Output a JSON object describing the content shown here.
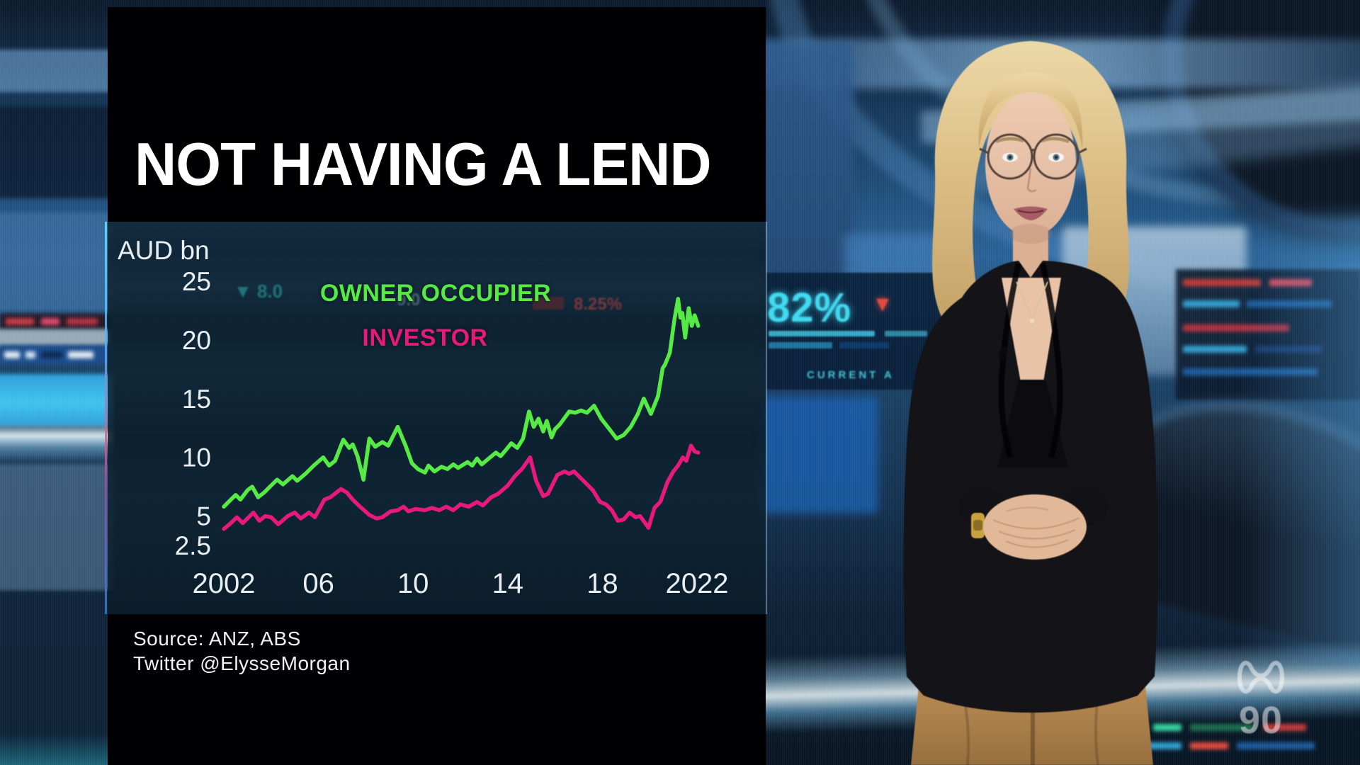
{
  "header": {
    "title": "NOT HAVING A LEND"
  },
  "footer": {
    "source": "Source: ANZ, ABS",
    "credit": "Twitter @ElysseMorgan"
  },
  "watermark": {
    "station": "ABC",
    "number": "90"
  },
  "colors": {
    "owner_occupier_green": "#55EB44",
    "investor_pink": "#E8197C",
    "axis_text": "#E9EFF2",
    "panel_black": "#010103",
    "ticker_cyan": "#3FD9F0",
    "ticker_red": "#E0483E",
    "ticker_teal": "#2FD0C8"
  },
  "studio": {
    "screen_big_percent": "82%",
    "screen_down_triangle": "▼",
    "screen_caption": "CURRENT A",
    "bleed_teal_ticker": "▼ 8.0",
    "bleed_pale_ticker": "9.0",
    "bleed_red_ticker": "8.25%"
  },
  "chart_data": {
    "type": "line",
    "title": "NOT HAVING A LEND",
    "ylabel": "AUD bn",
    "xlabel": "",
    "grid": false,
    "legend_position": "inside-top-center",
    "x_range": [
      2002,
      2022
    ],
    "y_range": [
      2.5,
      25
    ],
    "y_ticks": [
      {
        "value": 25,
        "label": "25"
      },
      {
        "value": 20,
        "label": "20"
      },
      {
        "value": 15,
        "label": "15"
      },
      {
        "value": 10,
        "label": "10"
      },
      {
        "value": 5,
        "label": "5"
      },
      {
        "value": 2.5,
        "label": "2.5"
      }
    ],
    "x_ticks": [
      {
        "value": 2002,
        "label": "2002"
      },
      {
        "value": 2006,
        "label": "06"
      },
      {
        "value": 2010,
        "label": "10"
      },
      {
        "value": 2014,
        "label": "14"
      },
      {
        "value": 2018,
        "label": "18"
      },
      {
        "value": 2022,
        "label": "2022"
      }
    ],
    "series": [
      {
        "name": "OWNER OCCUPIER",
        "color": "#55EB44",
        "points": [
          [
            2002.0,
            5.8
          ],
          [
            2002.25,
            6.3
          ],
          [
            2002.5,
            6.8
          ],
          [
            2002.7,
            6.4
          ],
          [
            2003.0,
            7.2
          ],
          [
            2003.2,
            7.5
          ],
          [
            2003.45,
            6.6
          ],
          [
            2003.7,
            7.0
          ],
          [
            2003.95,
            7.5
          ],
          [
            2004.25,
            8.1
          ],
          [
            2004.5,
            7.7
          ],
          [
            2004.9,
            8.4
          ],
          [
            2005.1,
            8.0
          ],
          [
            2005.45,
            8.6
          ],
          [
            2005.8,
            9.3
          ],
          [
            2006.2,
            10.0
          ],
          [
            2006.45,
            9.3
          ],
          [
            2006.7,
            9.7
          ],
          [
            2007.05,
            11.5
          ],
          [
            2007.3,
            10.8
          ],
          [
            2007.45,
            11.1
          ],
          [
            2007.65,
            10.1
          ],
          [
            2007.9,
            8.1
          ],
          [
            2008.15,
            11.6
          ],
          [
            2008.4,
            10.9
          ],
          [
            2008.7,
            11.3
          ],
          [
            2008.95,
            11.0
          ],
          [
            2009.35,
            12.6
          ],
          [
            2009.7,
            10.9
          ],
          [
            2009.95,
            9.5
          ],
          [
            2010.2,
            9.0
          ],
          [
            2010.5,
            8.7
          ],
          [
            2010.65,
            9.3
          ],
          [
            2010.9,
            8.8
          ],
          [
            2011.2,
            9.2
          ],
          [
            2011.45,
            9.0
          ],
          [
            2011.7,
            9.4
          ],
          [
            2011.9,
            9.1
          ],
          [
            2012.3,
            9.6
          ],
          [
            2012.5,
            9.3
          ],
          [
            2012.7,
            9.9
          ],
          [
            2012.9,
            9.4
          ],
          [
            2013.2,
            9.9
          ],
          [
            2013.5,
            10.4
          ],
          [
            2013.7,
            10.1
          ],
          [
            2013.95,
            10.7
          ],
          [
            2014.15,
            11.2
          ],
          [
            2014.4,
            10.8
          ],
          [
            2014.65,
            11.6
          ],
          [
            2014.9,
            13.9
          ],
          [
            2015.1,
            12.6
          ],
          [
            2015.3,
            13.3
          ],
          [
            2015.5,
            12.2
          ],
          [
            2015.65,
            13.1
          ],
          [
            2015.85,
            11.7
          ],
          [
            2016.0,
            12.4
          ],
          [
            2016.2,
            12.8
          ],
          [
            2016.6,
            13.9
          ],
          [
            2016.85,
            13.8
          ],
          [
            2017.1,
            14.0
          ],
          [
            2017.35,
            13.8
          ],
          [
            2017.65,
            14.4
          ],
          [
            2017.95,
            13.3
          ],
          [
            2018.3,
            12.4
          ],
          [
            2018.6,
            11.6
          ],
          [
            2018.9,
            11.9
          ],
          [
            2019.2,
            12.6
          ],
          [
            2019.5,
            13.7
          ],
          [
            2019.75,
            15.0
          ],
          [
            2020.05,
            13.7
          ],
          [
            2020.35,
            15.2
          ],
          [
            2020.55,
            17.6
          ],
          [
            2020.65,
            17.9
          ],
          [
            2020.85,
            18.9
          ],
          [
            2021.05,
            21.8
          ],
          [
            2021.2,
            23.5
          ],
          [
            2021.3,
            21.9
          ],
          [
            2021.38,
            22.3
          ],
          [
            2021.5,
            20.2
          ],
          [
            2021.65,
            22.7
          ],
          [
            2021.78,
            21.2
          ],
          [
            2021.9,
            22.1
          ],
          [
            2022.05,
            21.2
          ]
        ]
      },
      {
        "name": "INVESTOR",
        "color": "#E8197C",
        "points": [
          [
            2002.0,
            3.9
          ],
          [
            2002.3,
            4.4
          ],
          [
            2002.55,
            4.9
          ],
          [
            2002.8,
            4.4
          ],
          [
            2003.05,
            4.9
          ],
          [
            2003.25,
            5.3
          ],
          [
            2003.5,
            4.6
          ],
          [
            2003.75,
            5.0
          ],
          [
            2004.0,
            4.9
          ],
          [
            2004.3,
            4.3
          ],
          [
            2004.7,
            5.0
          ],
          [
            2005.0,
            5.3
          ],
          [
            2005.25,
            4.8
          ],
          [
            2005.6,
            5.3
          ],
          [
            2005.85,
            4.9
          ],
          [
            2006.25,
            6.4
          ],
          [
            2006.5,
            6.6
          ],
          [
            2006.95,
            7.3
          ],
          [
            2007.2,
            7.0
          ],
          [
            2007.45,
            6.4
          ],
          [
            2007.7,
            5.9
          ],
          [
            2008.15,
            5.1
          ],
          [
            2008.45,
            4.8
          ],
          [
            2008.7,
            4.9
          ],
          [
            2009.05,
            5.4
          ],
          [
            2009.35,
            5.5
          ],
          [
            2009.6,
            5.8
          ],
          [
            2009.8,
            5.4
          ],
          [
            2010.1,
            5.6
          ],
          [
            2010.5,
            5.5
          ],
          [
            2010.8,
            5.7
          ],
          [
            2011.1,
            5.5
          ],
          [
            2011.4,
            5.8
          ],
          [
            2011.7,
            5.5
          ],
          [
            2012.0,
            6.0
          ],
          [
            2012.35,
            5.8
          ],
          [
            2012.7,
            6.2
          ],
          [
            2012.95,
            5.9
          ],
          [
            2013.3,
            6.6
          ],
          [
            2013.6,
            6.9
          ],
          [
            2014.0,
            7.6
          ],
          [
            2014.3,
            8.4
          ],
          [
            2014.6,
            9.0
          ],
          [
            2014.95,
            10.0
          ],
          [
            2015.2,
            8.0
          ],
          [
            2015.5,
            6.7
          ],
          [
            2015.7,
            6.9
          ],
          [
            2016.1,
            8.5
          ],
          [
            2016.4,
            8.8
          ],
          [
            2016.6,
            8.6
          ],
          [
            2016.8,
            8.8
          ],
          [
            2017.3,
            7.8
          ],
          [
            2017.6,
            7.2
          ],
          [
            2017.9,
            6.2
          ],
          [
            2018.15,
            6.0
          ],
          [
            2018.4,
            5.5
          ],
          [
            2018.65,
            4.6
          ],
          [
            2018.9,
            4.7
          ],
          [
            2019.15,
            5.3
          ],
          [
            2019.4,
            4.9
          ],
          [
            2019.6,
            5.0
          ],
          [
            2019.95,
            4.0
          ],
          [
            2020.2,
            5.7
          ],
          [
            2020.45,
            6.2
          ],
          [
            2020.75,
            7.9
          ],
          [
            2021.0,
            8.8
          ],
          [
            2021.2,
            9.3
          ],
          [
            2021.4,
            10.0
          ],
          [
            2021.55,
            9.7
          ],
          [
            2021.75,
            11.0
          ],
          [
            2021.9,
            10.5
          ],
          [
            2022.05,
            10.4
          ]
        ]
      }
    ]
  }
}
